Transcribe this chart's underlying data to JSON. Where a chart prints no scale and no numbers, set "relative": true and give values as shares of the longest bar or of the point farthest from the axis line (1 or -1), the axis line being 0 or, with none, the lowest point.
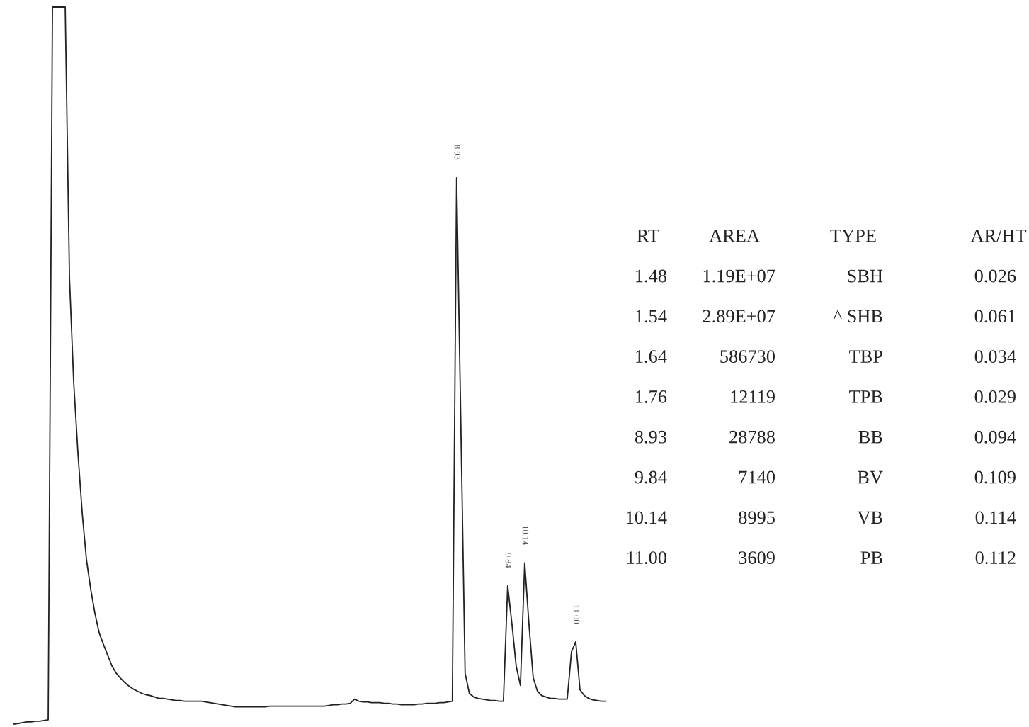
{
  "chart_data": {
    "type": "line",
    "relative": true,
    "color": "#222222",
    "legend": false,
    "marker": "none",
    "line_style": "solid",
    "categories": [
      null,
      null,
      null,
      null,
      null,
      null,
      null,
      null,
      null,
      null,
      null,
      null,
      null,
      null,
      null,
      null,
      null,
      null,
      null,
      null,
      null,
      null,
      null,
      null,
      null,
      null,
      null,
      null,
      null,
      null,
      null,
      null,
      null,
      null,
      null,
      null,
      null,
      null,
      null,
      null,
      null,
      null,
      null,
      null,
      null,
      null,
      null,
      null,
      null,
      null,
      null,
      null,
      null,
      null,
      null,
      null,
      null,
      null,
      null,
      null,
      null,
      null,
      null,
      null,
      null,
      null,
      null,
      null,
      null,
      null,
      null,
      null,
      null,
      null,
      null,
      null,
      null,
      null,
      null,
      null,
      null,
      null,
      null,
      null,
      null,
      null,
      null,
      null,
      null,
      null,
      null,
      null,
      null,
      null,
      null,
      null,
      null,
      null,
      null,
      null,
      null,
      null,
      null,
      null,
      null,
      null,
      null,
      null,
      null,
      null,
      null,
      null,
      null,
      null,
      null,
      null,
      null,
      null,
      null,
      null,
      null,
      null,
      null,
      null,
      null,
      null,
      null,
      null,
      null,
      null,
      null,
      null,
      null,
      null,
      null,
      null,
      null,
      null,
      null,
      null
    ],
    "values": [
      0,
      0.001,
      0.002,
      0.003,
      0.003,
      0.004,
      0.004,
      0.005,
      0.006,
      1,
      1,
      1,
      1,
      0.622,
      0.476,
      0.377,
      0.294,
      0.229,
      0.188,
      0.154,
      0.127,
      0.111,
      0.096,
      0.081,
      0.071,
      0.064,
      0.058,
      0.053,
      0.049,
      0.046,
      0.043,
      0.041,
      0.04,
      0.038,
      0.036,
      0.036,
      0.035,
      0.034,
      0.033,
      0.033,
      0.032,
      0.032,
      0.032,
      0.032,
      0.032,
      0.031,
      0.03,
      0.029,
      0.028,
      0.027,
      0.026,
      0.025,
      0.024,
      0.024,
      0.024,
      0.024,
      0.024,
      0.024,
      0.024,
      0.024,
      0.025,
      0.025,
      0.025,
      0.025,
      0.025,
      0.025,
      0.025,
      0.025,
      0.025,
      0.025,
      0.025,
      0.025,
      0.025,
      0.025,
      0.026,
      0.027,
      0.027,
      0.028,
      0.028,
      0.029,
      0.035,
      0.032,
      0.031,
      0.031,
      0.03,
      0.03,
      0.03,
      0.029,
      0.029,
      0.028,
      0.028,
      0.027,
      0.027,
      0.027,
      0.027,
      0.028,
      0.028,
      0.029,
      0.029,
      0.029,
      0.03,
      0.03,
      0.031,
      0.032,
      0.762,
      0.417,
      0.071,
      0.043,
      0.038,
      0.036,
      0.035,
      0.034,
      0.033,
      0.033,
      0.032,
      0.032,
      0.193,
      0.14,
      0.081,
      0.054,
      0.225,
      0.14,
      0.065,
      0.046,
      0.04,
      0.038,
      0.036,
      0.036,
      0.035,
      0.035,
      0.035,
      0.101,
      0.115,
      0.048,
      0.04,
      0.036,
      0.034,
      0.033,
      0.032,
      0.032
    ],
    "annotations": [
      {
        "text": "8.93",
        "y": 0.762
      },
      {
        "text": "9.84",
        "y": 0.193
      },
      {
        "text": "10.14",
        "y": 0.225
      },
      {
        "text": "11.00",
        "y": 0.115
      },
      "RT",
      "AREA",
      "TYPE",
      "AR/HT",
      "1.48",
      "1.19E+07",
      "SBH",
      "0.026",
      "1.54",
      "2.89E+07",
      "^ SHB",
      "0.061",
      "1.64",
      "586730",
      "TBP",
      "0.034",
      "1.76",
      "12119",
      "TPB",
      "0.029",
      "8.93",
      "28788",
      "BB",
      "0.094",
      "9.84",
      "7140",
      "BV",
      "0.109",
      "10.14",
      "8995",
      "VB",
      "0.114",
      "11.00",
      "3609",
      "PB",
      "0.112"
    ]
  }
}
